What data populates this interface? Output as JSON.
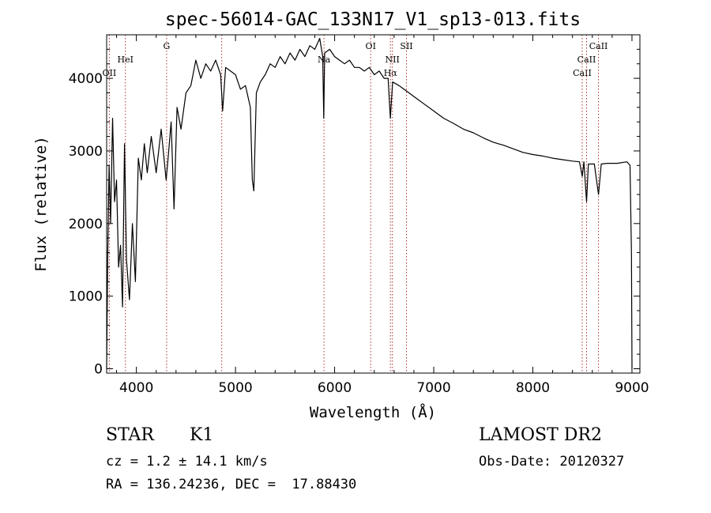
{
  "chart_data": {
    "type": "line",
    "title": "spec-56014-GAC_133N17_V1_sp13-013.fits",
    "xlabel": "Wavelength (Å)",
    "ylabel": "Flux (relative)",
    "xlim": [
      3700,
      9080
    ],
    "ylim": [
      -60,
      4600
    ],
    "grid": false,
    "x_ticks": [
      4000,
      5000,
      6000,
      7000,
      8000,
      9000
    ],
    "x_tick_labels": [
      "4000",
      "5000",
      "6000",
      "7000",
      "8000",
      "9000"
    ],
    "y_ticks": [
      0,
      1000,
      2000,
      3000,
      4000
    ],
    "y_tick_labels": [
      "0",
      "1000",
      "2000",
      "3000",
      "4000"
    ],
    "line_color": "#000000",
    "marker_color": "#b03030",
    "series": [
      {
        "values": [
          {
            "x": 3700,
            "y": 0
          },
          {
            "x": 3710,
            "y": 1500
          },
          {
            "x": 3725,
            "y": 2800
          },
          {
            "x": 3740,
            "y": 2000
          },
          {
            "x": 3760,
            "y": 3450
          },
          {
            "x": 3780,
            "y": 2300
          },
          {
            "x": 3800,
            "y": 2600
          },
          {
            "x": 3820,
            "y": 1400
          },
          {
            "x": 3840,
            "y": 1700
          },
          {
            "x": 3860,
            "y": 850
          },
          {
            "x": 3880,
            "y": 3100
          },
          {
            "x": 3900,
            "y": 1500
          },
          {
            "x": 3930,
            "y": 950
          },
          {
            "x": 3960,
            "y": 2000
          },
          {
            "x": 3990,
            "y": 1200
          },
          {
            "x": 4020,
            "y": 2900
          },
          {
            "x": 4050,
            "y": 2600
          },
          {
            "x": 4080,
            "y": 3100
          },
          {
            "x": 4110,
            "y": 2700
          },
          {
            "x": 4150,
            "y": 3200
          },
          {
            "x": 4200,
            "y": 2700
          },
          {
            "x": 4250,
            "y": 3300
          },
          {
            "x": 4300,
            "y": 2600
          },
          {
            "x": 4320,
            "y": 2900
          },
          {
            "x": 4350,
            "y": 3400
          },
          {
            "x": 4380,
            "y": 2200
          },
          {
            "x": 4410,
            "y": 3600
          },
          {
            "x": 4450,
            "y": 3300
          },
          {
            "x": 4500,
            "y": 3800
          },
          {
            "x": 4550,
            "y": 3900
          },
          {
            "x": 4600,
            "y": 4250
          },
          {
            "x": 4650,
            "y": 4000
          },
          {
            "x": 4700,
            "y": 4200
          },
          {
            "x": 4750,
            "y": 4100
          },
          {
            "x": 4800,
            "y": 4250
          },
          {
            "x": 4850,
            "y": 4050
          },
          {
            "x": 4870,
            "y": 3550
          },
          {
            "x": 4900,
            "y": 4150
          },
          {
            "x": 4950,
            "y": 4100
          },
          {
            "x": 5000,
            "y": 4050
          },
          {
            "x": 5050,
            "y": 3850
          },
          {
            "x": 5100,
            "y": 3900
          },
          {
            "x": 5150,
            "y": 3600
          },
          {
            "x": 5170,
            "y": 2600
          },
          {
            "x": 5185,
            "y": 2450
          },
          {
            "x": 5210,
            "y": 3800
          },
          {
            "x": 5250,
            "y": 3950
          },
          {
            "x": 5300,
            "y": 4050
          },
          {
            "x": 5350,
            "y": 4200
          },
          {
            "x": 5400,
            "y": 4150
          },
          {
            "x": 5450,
            "y": 4300
          },
          {
            "x": 5500,
            "y": 4200
          },
          {
            "x": 5550,
            "y": 4350
          },
          {
            "x": 5600,
            "y": 4250
          },
          {
            "x": 5650,
            "y": 4400
          },
          {
            "x": 5700,
            "y": 4300
          },
          {
            "x": 5750,
            "y": 4450
          },
          {
            "x": 5800,
            "y": 4400
          },
          {
            "x": 5850,
            "y": 4550
          },
          {
            "x": 5880,
            "y": 4300
          },
          {
            "x": 5890,
            "y": 3450
          },
          {
            "x": 5900,
            "y": 4350
          },
          {
            "x": 5950,
            "y": 4400
          },
          {
            "x": 6000,
            "y": 4300
          },
          {
            "x": 6050,
            "y": 4250
          },
          {
            "x": 6100,
            "y": 4200
          },
          {
            "x": 6150,
            "y": 4250
          },
          {
            "x": 6200,
            "y": 4150
          },
          {
            "x": 6250,
            "y": 4150
          },
          {
            "x": 6300,
            "y": 4100
          },
          {
            "x": 6350,
            "y": 4150
          },
          {
            "x": 6400,
            "y": 4050
          },
          {
            "x": 6450,
            "y": 4100
          },
          {
            "x": 6500,
            "y": 4000
          },
          {
            "x": 6540,
            "y": 4000
          },
          {
            "x": 6562,
            "y": 3450
          },
          {
            "x": 6585,
            "y": 3950
          },
          {
            "x": 6650,
            "y": 3900
          },
          {
            "x": 6700,
            "y": 3850
          },
          {
            "x": 6750,
            "y": 3800
          },
          {
            "x": 6800,
            "y": 3750
          },
          {
            "x": 6900,
            "y": 3650
          },
          {
            "x": 7000,
            "y": 3550
          },
          {
            "x": 7100,
            "y": 3450
          },
          {
            "x": 7200,
            "y": 3380
          },
          {
            "x": 7300,
            "y": 3300
          },
          {
            "x": 7400,
            "y": 3250
          },
          {
            "x": 7500,
            "y": 3180
          },
          {
            "x": 7600,
            "y": 3120
          },
          {
            "x": 7700,
            "y": 3080
          },
          {
            "x": 7800,
            "y": 3030
          },
          {
            "x": 7900,
            "y": 2980
          },
          {
            "x": 8000,
            "y": 2950
          },
          {
            "x": 8100,
            "y": 2930
          },
          {
            "x": 8200,
            "y": 2900
          },
          {
            "x": 8300,
            "y": 2880
          },
          {
            "x": 8400,
            "y": 2860
          },
          {
            "x": 8470,
            "y": 2850
          },
          {
            "x": 8498,
            "y": 2650
          },
          {
            "x": 8515,
            "y": 2850
          },
          {
            "x": 8542,
            "y": 2300
          },
          {
            "x": 8560,
            "y": 2820
          },
          {
            "x": 8620,
            "y": 2820
          },
          {
            "x": 8662,
            "y": 2400
          },
          {
            "x": 8690,
            "y": 2820
          },
          {
            "x": 8750,
            "y": 2830
          },
          {
            "x": 8850,
            "y": 2830
          },
          {
            "x": 8950,
            "y": 2850
          },
          {
            "x": 8980,
            "y": 2800
          },
          {
            "x": 8995,
            "y": 1600
          },
          {
            "x": 9000,
            "y": 0
          }
        ]
      }
    ],
    "line_markers": [
      {
        "x": 3727,
        "label": "OII"
      },
      {
        "x": 3889,
        "label": "HeI"
      },
      {
        "x": 4305,
        "label": "G"
      },
      {
        "x": 4861,
        "label": ""
      },
      {
        "x": 5893,
        "label": "Na"
      },
      {
        "x": 6364,
        "label": "OI"
      },
      {
        "x": 6563,
        "label": "Hα"
      },
      {
        "x": 6583,
        "label": "NII"
      },
      {
        "x": 6725,
        "label": "SII"
      },
      {
        "x": 8498,
        "label": "CaII"
      },
      {
        "x": 8542,
        "label": "CaII"
      },
      {
        "x": 8662,
        "label": "CaII"
      }
    ]
  },
  "info": {
    "object_type": "STAR",
    "subclass": "K1",
    "survey": "LAMOST DR2",
    "cz": "cz = 1.2 ± 14.1 km/s",
    "obs_date": "Obs-Date: 20120327",
    "coords": "RA = 136.24236, DEC =  17.88430"
  }
}
